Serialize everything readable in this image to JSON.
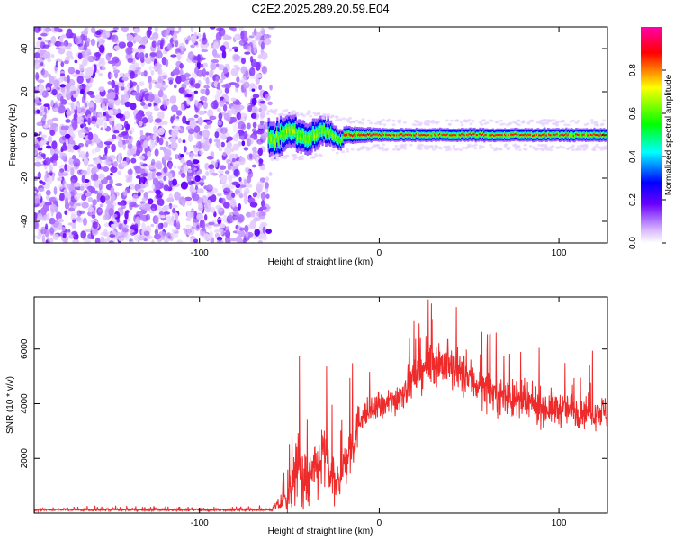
{
  "title": "C2E2.2025.289.20.59.E04",
  "chart_data": [
    {
      "type": "heatmap",
      "name": "spectrogram",
      "xlabel": "Height of straight line (km)",
      "ylabel": "Frequency (Hz)",
      "xlim": [
        -192,
        127
      ],
      "ylim": [
        -50,
        50
      ],
      "xticks": [
        -100,
        0,
        100
      ],
      "xtick_labels": [
        "-100",
        "0",
        "100"
      ],
      "yticks": [
        -40,
        -20,
        0,
        20,
        40
      ],
      "ytick_labels": [
        "-40",
        "-20",
        "0",
        "20",
        "40"
      ],
      "colorbar": {
        "label": "Normalized spectral amplitude",
        "range": [
          0,
          1
        ],
        "ticks": [
          0.0,
          0.2,
          0.4,
          0.6,
          0.8
        ],
        "tick_labels": [
          "0.0",
          "0.2",
          "0.4",
          "0.6",
          "0.8"
        ],
        "colors": [
          "#ffffff",
          "#d8b8ff",
          "#6a00ff",
          "#0000ff",
          "#00ffff",
          "#00ff00",
          "#ffff00",
          "#ff0000",
          "#ff00aa"
        ]
      },
      "regions": [
        {
          "x_range": [
            -192,
            -62
          ],
          "description": "broadband noise",
          "amplitude": [
            0.0,
            0.15
          ]
        },
        {
          "x_range": [
            -62,
            127
          ],
          "center_freq_hz": 0,
          "peak_amplitude": 0.9
        }
      ],
      "signal_band_halfwidth_hz": [
        {
          "x": -62,
          "halfwidth": 8
        },
        {
          "x": -35,
          "halfwidth": 7
        },
        {
          "x": -20,
          "halfwidth": 4
        },
        {
          "x": 0,
          "halfwidth": 3
        },
        {
          "x": 127,
          "halfwidth": 3
        }
      ]
    },
    {
      "type": "line",
      "name": "snr",
      "xlabel": "Height of straight line (km)",
      "ylabel": "SNR (10 * v/v)",
      "xlim": [
        -192,
        127
      ],
      "ylim": [
        0,
        7900
      ],
      "xticks": [
        -100,
        0,
        100
      ],
      "xtick_labels": [
        "-100",
        "0",
        "100"
      ],
      "yticks": [
        2000,
        4000,
        6000
      ],
      "ytick_labels": [
        "2000",
        "4000",
        "6000"
      ],
      "line_color": "#ee2a2a",
      "envelope": {
        "x": [
          -192,
          -60,
          -50,
          -45,
          -40,
          -30,
          -25,
          -15,
          -10,
          0,
          10,
          20,
          30,
          40,
          60,
          80,
          100,
          127
        ],
        "mean": [
          120,
          120,
          600,
          1800,
          1000,
          2200,
          800,
          2500,
          3600,
          3800,
          4200,
          5000,
          5600,
          5300,
          4500,
          4000,
          3800,
          3700
        ],
        "spread": [
          60,
          60,
          800,
          1800,
          1200,
          1800,
          900,
          1400,
          700,
          600,
          800,
          900,
          1100,
          1100,
          900,
          900,
          800,
          800
        ]
      }
    }
  ]
}
